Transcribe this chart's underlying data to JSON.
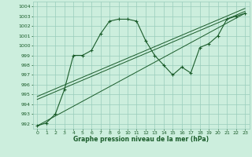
{
  "xlabel": "Graphe pression niveau de la mer (hPa)",
  "bg_color": "#cceedd",
  "grid_color": "#99ccbb",
  "line_color": "#1a5c2a",
  "ylim": [
    991.5,
    1004.5
  ],
  "xlim": [
    -0.5,
    23.5
  ],
  "yticks": [
    992,
    993,
    994,
    995,
    996,
    997,
    998,
    999,
    1000,
    1001,
    1002,
    1003,
    1004
  ],
  "xticks": [
    0,
    1,
    2,
    3,
    4,
    5,
    6,
    7,
    8,
    9,
    10,
    11,
    12,
    13,
    14,
    15,
    16,
    17,
    18,
    19,
    20,
    21,
    22,
    23
  ],
  "main_line": [
    [
      0,
      991.8
    ],
    [
      1,
      992.1
    ],
    [
      2,
      993.0
    ],
    [
      3,
      995.5
    ],
    [
      4,
      999.0
    ],
    [
      5,
      999.0
    ],
    [
      6,
      999.5
    ],
    [
      7,
      1001.2
    ],
    [
      8,
      1002.5
    ],
    [
      9,
      1002.7
    ],
    [
      10,
      1002.7
    ],
    [
      11,
      1002.5
    ],
    [
      12,
      1000.5
    ],
    [
      13,
      999.0
    ],
    [
      14,
      998.0
    ],
    [
      15,
      997.0
    ],
    [
      16,
      997.8
    ],
    [
      17,
      997.2
    ],
    [
      18,
      999.8
    ],
    [
      19,
      1000.2
    ],
    [
      20,
      1001.0
    ],
    [
      21,
      1002.7
    ],
    [
      22,
      1003.0
    ],
    [
      23,
      1003.3
    ]
  ],
  "trend_line1": [
    [
      0,
      991.8
    ],
    [
      23,
      1003.3
    ]
  ],
  "trend_line2": [
    [
      0,
      994.5
    ],
    [
      23,
      1003.5
    ]
  ],
  "trend_line3": [
    [
      0,
      994.8
    ],
    [
      23,
      1003.8
    ]
  ]
}
